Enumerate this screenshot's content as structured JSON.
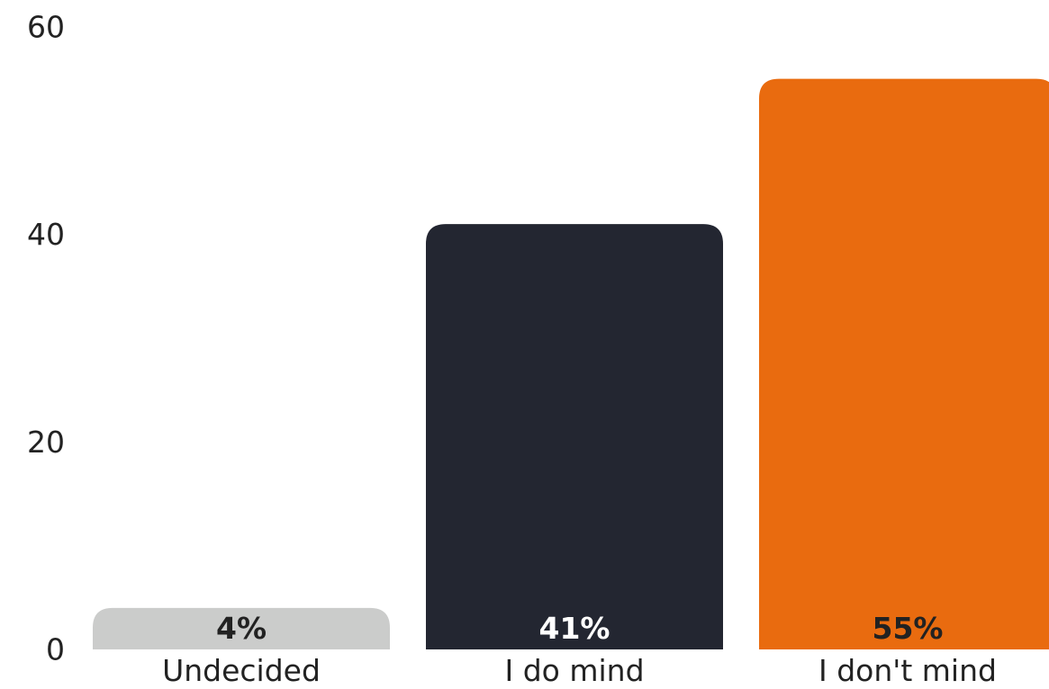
{
  "chart_data": {
    "type": "bar",
    "title": "",
    "xlabel": "",
    "ylabel": "",
    "ylim": [
      0,
      60
    ],
    "yticks": [
      0,
      20,
      40,
      60
    ],
    "grid": false,
    "legend": "none",
    "categories": [
      "Undecided",
      "I do mind",
      "I don't mind"
    ],
    "values": [
      4,
      41,
      55
    ],
    "value_labels": [
      "4%",
      "41%",
      "55%"
    ],
    "bar_colors": [
      "#cbcccb",
      "#232631",
      "#e96b0f"
    ],
    "label_colors": [
      "#222222",
      "#ffffff",
      "#222222"
    ]
  }
}
